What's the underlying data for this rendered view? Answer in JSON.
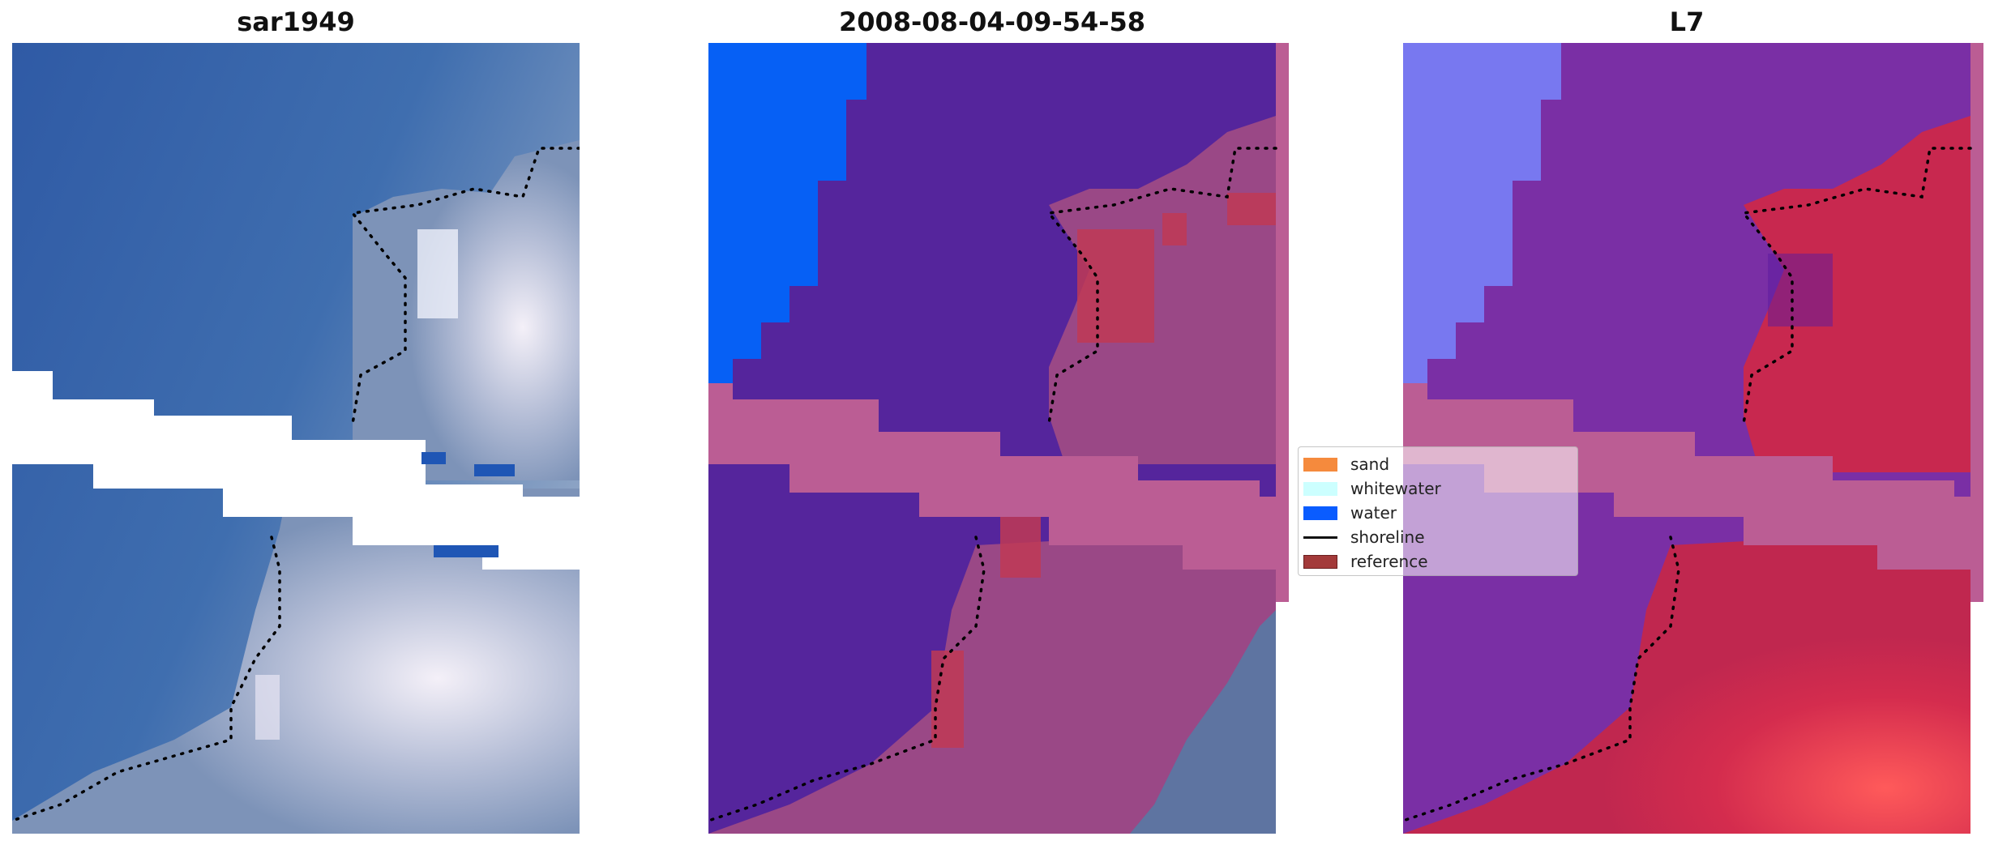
{
  "panels": [
    {
      "title": "sar1949",
      "variant": "rgb"
    },
    {
      "title": "2008-08-04-09-54-58",
      "variant": "classified"
    },
    {
      "title": "L7",
      "variant": "index"
    }
  ],
  "legend": {
    "items": [
      {
        "label": "sand",
        "color": "#f58a3d",
        "kind": "patch"
      },
      {
        "label": "whitewater",
        "color": "#ccffff",
        "kind": "patch"
      },
      {
        "label": "water",
        "color": "#0a5cff",
        "kind": "patch"
      },
      {
        "label": "shoreline",
        "color": "#111111",
        "kind": "line"
      },
      {
        "label": "reference",
        "color": "#a33a3a",
        "kind": "patch"
      }
    ]
  },
  "colors": {
    "classified_water": "#0660f5",
    "classified_land": "#55259c",
    "classified_cloud": "#bb5d94",
    "index_water_blue": "#7878f0",
    "index_purple": "#7a2fa5",
    "index_red": "#c8284f"
  }
}
